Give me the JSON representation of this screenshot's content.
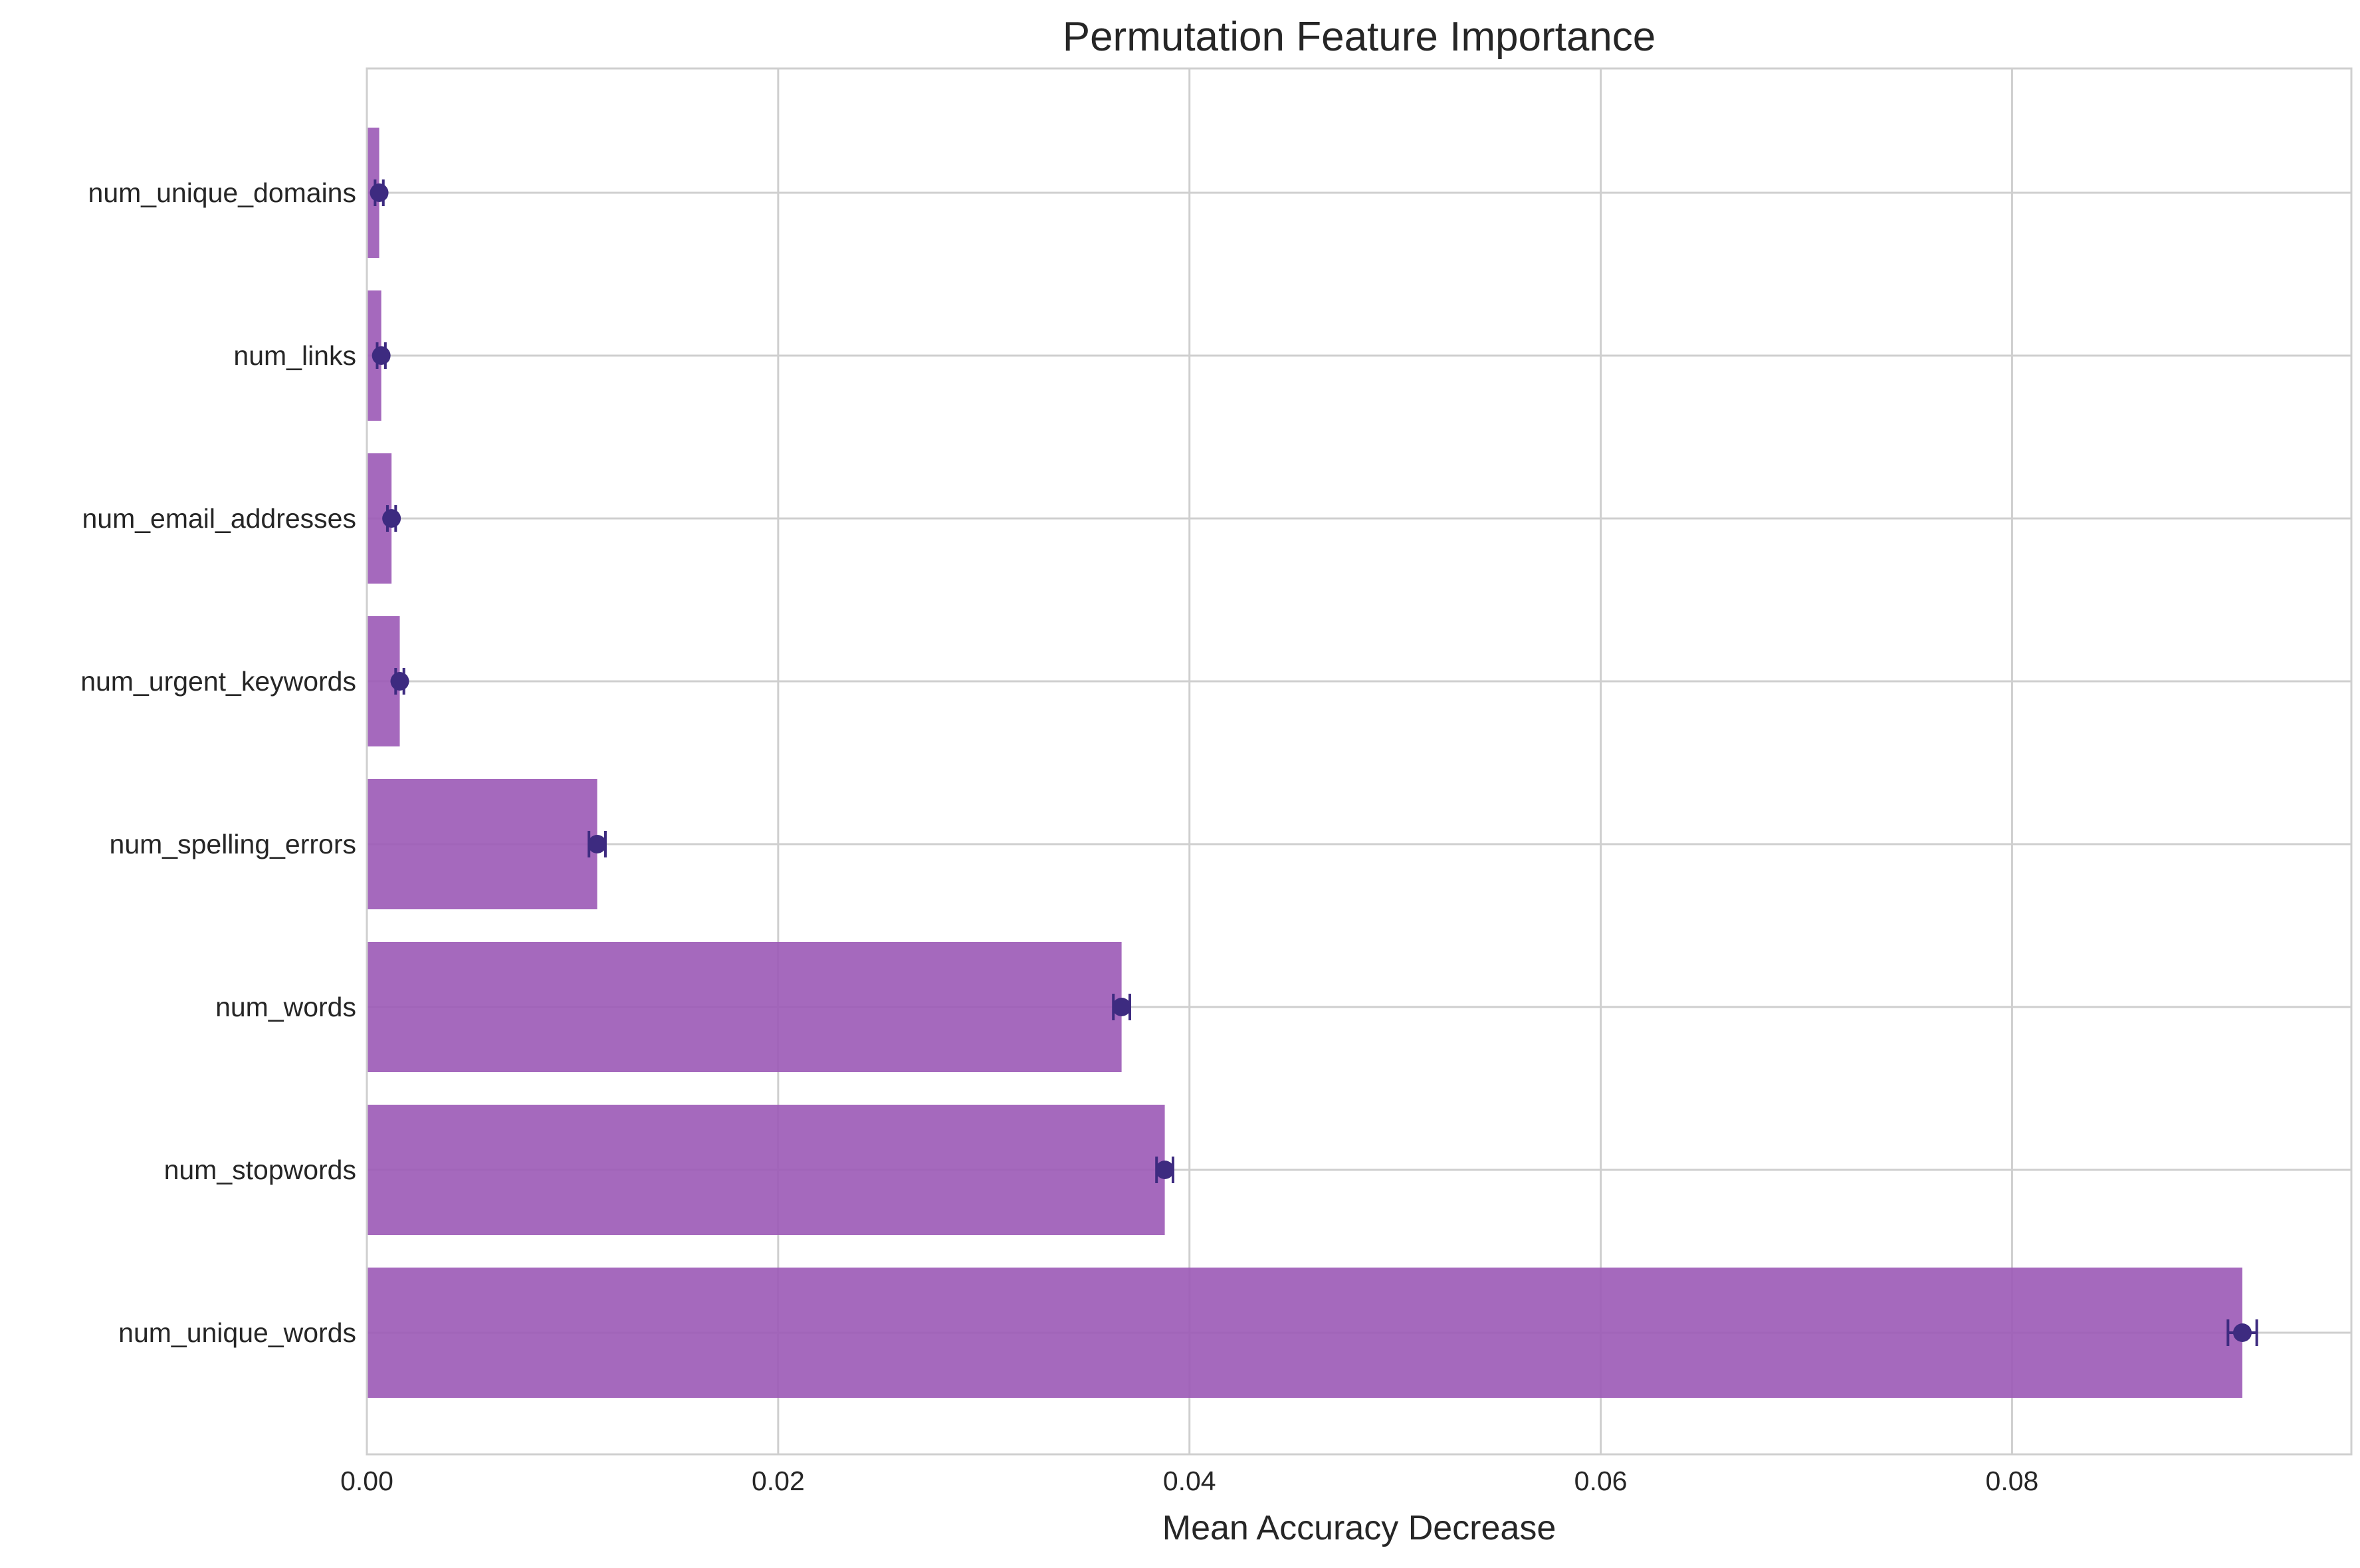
{
  "chart_data": {
    "type": "bar",
    "orientation": "horizontal",
    "title": "Permutation Feature Importance",
    "xlabel": "Mean Accuracy Decrease",
    "ylabel": "",
    "xlim": [
      0,
      0.0965
    ],
    "x_ticks": [
      0.0,
      0.02,
      0.04,
      0.06,
      0.08
    ],
    "x_tick_labels": [
      "0.00",
      "0.02",
      "0.04",
      "0.06",
      "0.08"
    ],
    "grid": true,
    "legend": "none",
    "bar_color": "#9b59b6",
    "marker_color": "#3d2b80",
    "categories": [
      "num_unique_words",
      "num_stopwords",
      "num_words",
      "num_spelling_errors",
      "num_urgent_keywords",
      "num_email_addresses",
      "num_links",
      "num_unique_domains"
    ],
    "values": [
      0.0912,
      0.0388,
      0.0367,
      0.0112,
      0.0016,
      0.0012,
      0.0007,
      0.0006
    ],
    "errors": [
      0.0007,
      0.0004,
      0.0004,
      0.0004,
      0.0002,
      0.0002,
      0.0002,
      0.0002
    ]
  }
}
